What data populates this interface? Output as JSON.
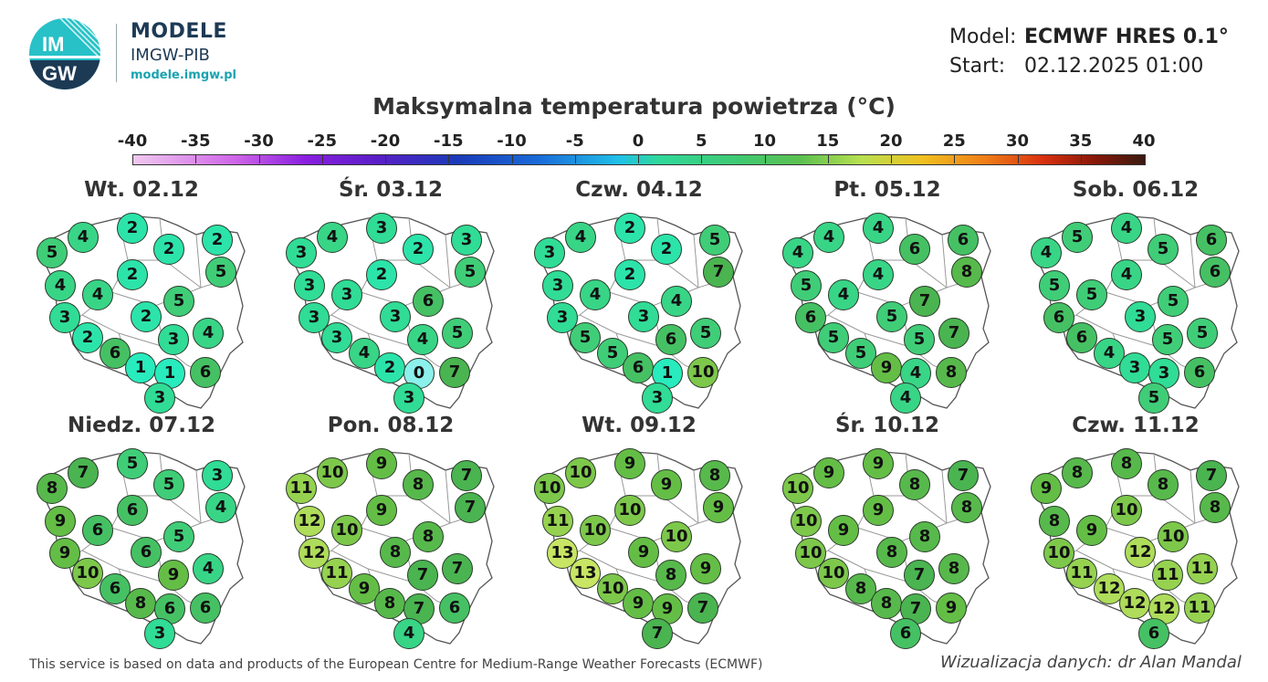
{
  "logo": {
    "title": "MODELE",
    "subtitle": "IMGW-PIB",
    "url": "modele.imgw.pl",
    "mark": "IMGW"
  },
  "meta": {
    "model_label": "Model:",
    "model_value": "ECMWF HRES 0.1°",
    "start_label": "Start:",
    "start_value": "02.12.2025 01:00"
  },
  "title": "Maksymalna temperatura powietrza (°C)",
  "scale": {
    "labels": [
      "-40",
      "-35",
      "-30",
      "-25",
      "-20",
      "-15",
      "-10",
      "-5",
      "0",
      "5",
      "10",
      "15",
      "20",
      "25",
      "30",
      "35",
      "40"
    ],
    "min": -40,
    "max": 40
  },
  "maps": [
    {
      "title": "Wt. 02.12",
      "values": [
        5,
        4,
        2,
        2,
        2,
        4,
        4,
        2,
        5,
        3,
        2,
        5,
        2,
        3,
        4,
        6,
        1,
        1,
        6,
        3
      ]
    },
    {
      "title": "Śr. 03.12",
      "values": [
        3,
        4,
        3,
        2,
        3,
        3,
        3,
        2,
        5,
        3,
        3,
        6,
        3,
        4,
        5,
        4,
        2,
        0,
        7,
        3
      ]
    },
    {
      "title": "Czw. 04.12",
      "values": [
        3,
        4,
        2,
        2,
        5,
        3,
        4,
        2,
        7,
        3,
        3,
        4,
        5,
        6,
        5,
        5,
        6,
        1,
        10,
        3
      ]
    },
    {
      "title": "Pt. 05.12",
      "values": [
        4,
        4,
        4,
        6,
        6,
        5,
        4,
        4,
        8,
        6,
        5,
        7,
        5,
        5,
        7,
        5,
        9,
        4,
        8,
        4
      ]
    },
    {
      "title": "Sob. 06.12",
      "values": [
        4,
        5,
        4,
        5,
        6,
        5,
        5,
        4,
        6,
        6,
        3,
        5,
        6,
        5,
        5,
        4,
        3,
        3,
        6,
        5
      ]
    },
    {
      "title": "Niedz. 07.12",
      "values": [
        8,
        7,
        5,
        5,
        3,
        9,
        6,
        6,
        4,
        9,
        6,
        5,
        10,
        9,
        4,
        6,
        8,
        6,
        6,
        3
      ]
    },
    {
      "title": "Pon. 08.12",
      "values": [
        11,
        10,
        9,
        8,
        7,
        12,
        10,
        9,
        7,
        12,
        8,
        8,
        11,
        7,
        7,
        9,
        8,
        7,
        6,
        4
      ]
    },
    {
      "title": "Wt. 09.12",
      "values": [
        10,
        10,
        9,
        9,
        8,
        11,
        10,
        10,
        9,
        13,
        9,
        10,
        13,
        8,
        9,
        10,
        9,
        9,
        7,
        7
      ]
    },
    {
      "title": "Śr. 10.12",
      "values": [
        10,
        9,
        9,
        8,
        7,
        10,
        9,
        9,
        8,
        10,
        8,
        8,
        10,
        7,
        8,
        8,
        8,
        7,
        9,
        6
      ]
    },
    {
      "title": "Czw. 11.12",
      "values": [
        9,
        8,
        8,
        8,
        7,
        8,
        9,
        10,
        8,
        10,
        12,
        10,
        11,
        11,
        11,
        12,
        12,
        12,
        11,
        6
      ]
    }
  ],
  "footer": {
    "credit": "This service is based on data and products of the European Centre for Medium-Range Weather Forecasts (ECMWF)",
    "author": "Wizualizacja danych: dr Alan Mandal"
  }
}
